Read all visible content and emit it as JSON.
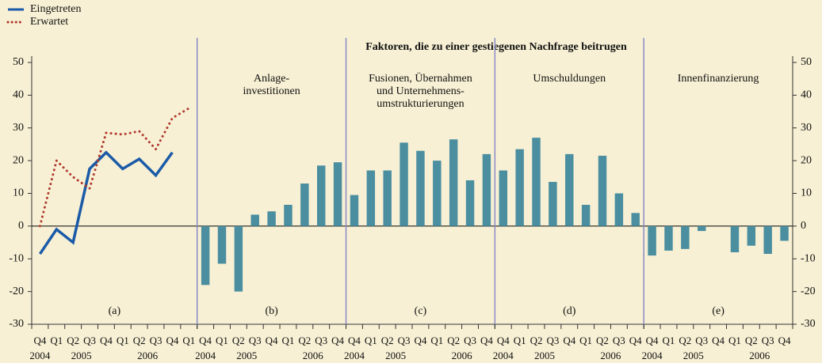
{
  "header": {
    "title": "Faktoren, die zu einer gestiegenen Nachfrage beitrugen"
  },
  "chart_data": [
    {
      "type": "line",
      "label": "(a)",
      "categories": [
        "Q4",
        "Q1",
        "Q2",
        "Q3",
        "Q4",
        "Q1",
        "Q2",
        "Q3",
        "Q4",
        "Q1"
      ],
      "years": [
        "2004",
        null,
        "2005",
        null,
        null,
        null,
        "2006",
        null,
        null,
        null
      ],
      "series": [
        {
          "name": "Eingetreten",
          "color": "#1a5aa8",
          "style": "solid",
          "values": [
            -8.5,
            -1,
            -5,
            17.5,
            22.5,
            17.5,
            20.5,
            15.5,
            22.5,
            null
          ]
        },
        {
          "name": "Erwartet",
          "color": "#b03a2e",
          "style": "dotted",
          "values": [
            0,
            20,
            15,
            11.5,
            28.5,
            28,
            29,
            23.5,
            33,
            36
          ]
        }
      ],
      "ylim": [
        -30,
        50
      ],
      "yticks": [
        -30,
        -20,
        -10,
        0,
        10,
        20,
        30,
        40,
        50
      ]
    },
    {
      "type": "bar",
      "label": "(b)",
      "title": [
        "Anlage-",
        "investitionen"
      ],
      "color": "#4a8ea0",
      "categories": [
        "Q4",
        "Q1",
        "Q2",
        "Q3",
        "Q4",
        "Q1",
        "Q2",
        "Q3",
        "Q4"
      ],
      "years": [
        "2004",
        null,
        "2005",
        null,
        null,
        null,
        "2006",
        null,
        null
      ],
      "values": [
        -18,
        -11.5,
        -20,
        3.5,
        4.5,
        6.5,
        13,
        18.5,
        19.5
      ]
    },
    {
      "type": "bar",
      "label": "(c)",
      "title": [
        "Fusionen, Übernahmen",
        "und Unternehmens-",
        "umstrukturierungen"
      ],
      "color": "#4a8ea0",
      "categories": [
        "Q4",
        "Q1",
        "Q2",
        "Q3",
        "Q4",
        "Q1",
        "Q2",
        "Q3",
        "Q4"
      ],
      "years": [
        "2004",
        null,
        "2005",
        null,
        null,
        null,
        "2006",
        null,
        null
      ],
      "values": [
        9.5,
        17,
        17,
        25.5,
        23,
        20,
        26.5,
        14,
        22
      ]
    },
    {
      "type": "bar",
      "label": "(d)",
      "title": [
        "Umschuldungen"
      ],
      "color": "#4a8ea0",
      "categories": [
        "Q4",
        "Q1",
        "Q2",
        "Q3",
        "Q4",
        "Q1",
        "Q2",
        "Q3",
        "Q4"
      ],
      "years": [
        "2004",
        null,
        "2005",
        null,
        null,
        null,
        "2006",
        null,
        null
      ],
      "values": [
        17,
        23.5,
        27,
        13.5,
        22,
        6.5,
        21.5,
        10,
        4
      ]
    },
    {
      "type": "bar",
      "label": "(e)",
      "title": [
        "Innenfinanzierung"
      ],
      "color": "#4a8ea0",
      "categories": [
        "Q4",
        "Q1",
        "Q2",
        "Q3",
        "Q4",
        "Q1",
        "Q2",
        "Q3",
        "Q4"
      ],
      "years": [
        "2004",
        null,
        "2005",
        null,
        null,
        null,
        "2006",
        null,
        null
      ],
      "values": [
        -9,
        -7.5,
        -7,
        -1.5,
        0,
        -8,
        -6,
        -8.5,
        -4.5
      ],
      "y2lim": [
        -30,
        50
      ],
      "y2ticks": [
        -30,
        -20,
        -10,
        0,
        10,
        20,
        30,
        40,
        50
      ]
    }
  ]
}
